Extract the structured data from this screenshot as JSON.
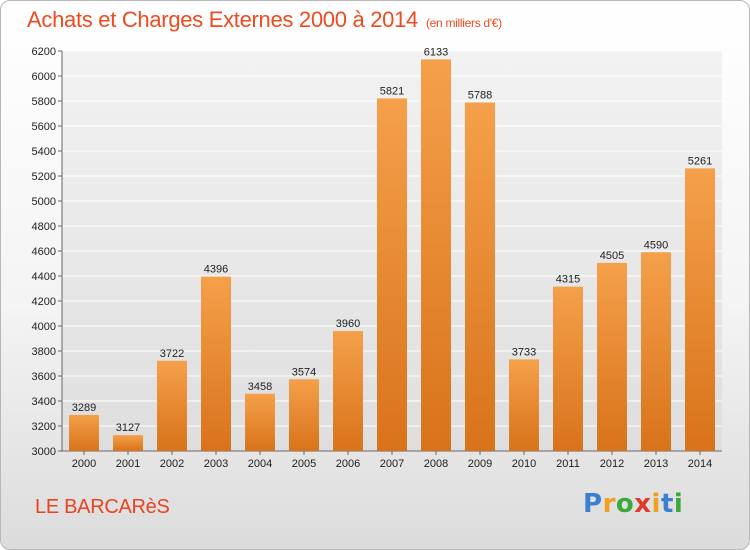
{
  "header": {
    "title": "Achats et Charges Externes 2000 à 2014",
    "subtitle": "(en milliers d'€)"
  },
  "footer": {
    "place": "LE BARCARèS",
    "logo": [
      "P",
      "r",
      "o",
      "x",
      "i",
      "t",
      "i"
    ],
    "logo_colors": [
      "#3a7fd0",
      "#f0a020",
      "#3aa93a",
      "#e03a2a",
      "#f0a020",
      "#3a7fd0",
      "#3aa93a"
    ]
  },
  "chart_data": {
    "type": "bar",
    "title": "Achats et Charges Externes 2000 à 2014",
    "subtitle": "(en milliers d'€)",
    "categories": [
      "2000",
      "2001",
      "2002",
      "2003",
      "2004",
      "2005",
      "2006",
      "2007",
      "2008",
      "2009",
      "2010",
      "2011",
      "2012",
      "2013",
      "2014"
    ],
    "values": [
      3289,
      3127,
      3722,
      4396,
      3458,
      3574,
      3960,
      5821,
      6133,
      5788,
      3733,
      4315,
      4505,
      4590,
      5261
    ],
    "ylim": [
      3000,
      6200
    ],
    "yticks": [
      3000,
      3200,
      3400,
      3600,
      3800,
      4000,
      4200,
      4400,
      4600,
      4800,
      5000,
      5200,
      5400,
      5600,
      5800,
      6000,
      6200
    ],
    "grid": true,
    "bar_color_top": "#f5a04a",
    "bar_color_bottom": "#d8731a"
  }
}
